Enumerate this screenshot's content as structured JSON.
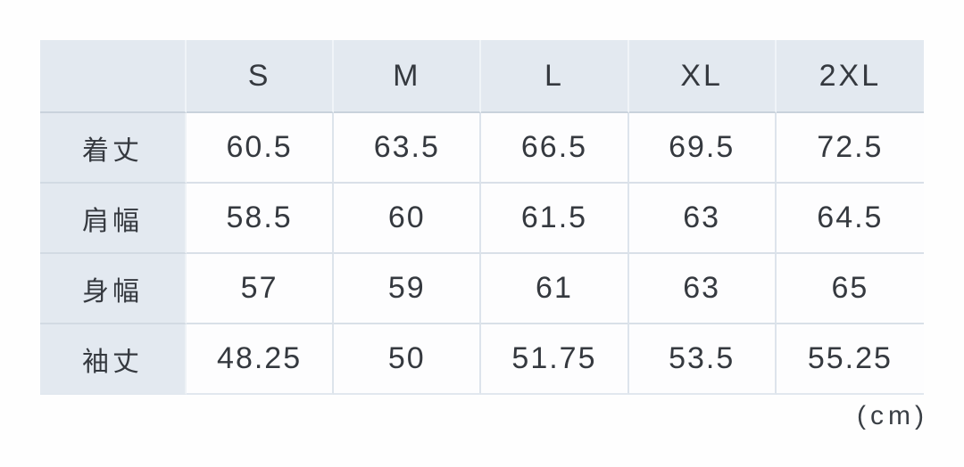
{
  "table": {
    "columns": [
      "S",
      "M",
      "L",
      "XL",
      "2XL"
    ],
    "rows": [
      {
        "label": "着丈",
        "values": [
          "60.5",
          "63.5",
          "66.5",
          "69.5",
          "72.5"
        ]
      },
      {
        "label": "肩幅",
        "values": [
          "58.5",
          "60",
          "61.5",
          "63",
          "64.5"
        ]
      },
      {
        "label": "身幅",
        "values": [
          "57",
          "59",
          "61",
          "63",
          "65"
        ]
      },
      {
        "label": "袖丈",
        "values": [
          "48.25",
          "50",
          "51.75",
          "53.5",
          "55.25"
        ]
      }
    ],
    "unit_note": "(cm)"
  },
  "colors": {
    "header_bg": "#e3e9f0",
    "cell_bg": "#fdfdfe",
    "grid_line": "#d9e0e8",
    "text": "#35393f",
    "page_bg": "#fefefe"
  },
  "chart_data": {
    "type": "table",
    "title": "",
    "unit": "cm",
    "columns": [
      "S",
      "M",
      "L",
      "XL",
      "2XL"
    ],
    "row_labels": [
      "着丈",
      "肩幅",
      "身幅",
      "袖丈"
    ],
    "series": [
      {
        "name": "着丈",
        "values": [
          60.5,
          63.5,
          66.5,
          69.5,
          72.5
        ]
      },
      {
        "name": "肩幅",
        "values": [
          58.5,
          60,
          61.5,
          63,
          64.5
        ]
      },
      {
        "name": "身幅",
        "values": [
          57,
          59,
          61,
          63,
          65
        ]
      },
      {
        "name": "袖丈",
        "values": [
          48.25,
          50,
          51.75,
          53.5,
          55.25
        ]
      }
    ]
  }
}
